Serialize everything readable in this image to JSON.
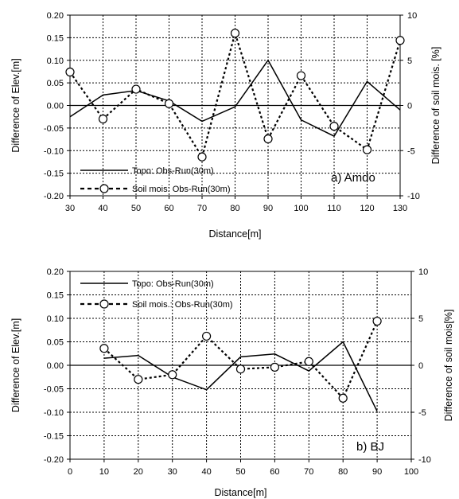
{
  "chart_data": [
    {
      "type": "line",
      "panel_label": "a) Amdo",
      "xlabel": "Distance[m]",
      "ylabel": "Difference of Elev.[m]",
      "y2label": "Difference of soil mois. [%]",
      "xlim": [
        30,
        130
      ],
      "ylim": [
        -0.2,
        0.2
      ],
      "y2lim": [
        -10,
        10
      ],
      "x_ticks": [
        "30",
        "40",
        "50",
        "60",
        "70",
        "80",
        "90",
        "100",
        "110",
        "120",
        "130"
      ],
      "y_ticks": [
        "0.20",
        "0.15",
        "0.10",
        "0.05",
        "0.00",
        "-0.05",
        "-0.10",
        "-0.15",
        "-0.20"
      ],
      "y2_ticks": [
        "10",
        "5",
        "0",
        "-5",
        "-10"
      ],
      "grid": true,
      "legend_position": "bottom-left",
      "series": [
        {
          "name": "Topo: Obs-Run(30m)",
          "axis": "left",
          "style": "solid",
          "x": [
            30,
            40,
            50,
            60,
            70,
            80,
            90,
            100,
            110,
            120,
            130
          ],
          "y": [
            -0.025,
            0.023,
            0.033,
            0.01,
            -0.035,
            -0.003,
            0.1,
            -0.032,
            -0.068,
            0.053,
            -0.01
          ]
        },
        {
          "name": "Soil mois: Obs-Run(30m)",
          "axis": "right",
          "style": "dotted-circle",
          "x": [
            30,
            40,
            50,
            60,
            70,
            80,
            90,
            100,
            110,
            120,
            130
          ],
          "y": [
            3.7,
            -1.5,
            1.8,
            0.2,
            -5.7,
            8.0,
            -3.7,
            3.3,
            -2.3,
            -4.9,
            7.2
          ]
        }
      ]
    },
    {
      "type": "line",
      "panel_label": "b) BJ",
      "xlabel": "Distance[m]",
      "ylabel": "Difference of Elev.[m]",
      "y2label": "Difference of soil mois[%]",
      "xlim": [
        0,
        100
      ],
      "ylim": [
        -0.2,
        0.2
      ],
      "y2lim": [
        -10,
        10
      ],
      "x_ticks": [
        "0",
        "10",
        "20",
        "30",
        "40",
        "50",
        "60",
        "70",
        "80",
        "90",
        "100"
      ],
      "y_ticks": [
        "0.20",
        "0.15",
        "0.10",
        "0.05",
        "0.00",
        "-0.05",
        "-0.10",
        "-0.15",
        "-0.20"
      ],
      "y2_ticks": [
        "10",
        "5",
        "0",
        "-5",
        "-10"
      ],
      "grid": true,
      "legend_position": "top-left",
      "series": [
        {
          "name": "Topo: Obs-Run(30m)",
          "axis": "left",
          "style": "solid",
          "x": [
            10,
            20,
            30,
            40,
            50,
            60,
            70,
            80,
            90
          ],
          "y": [
            0.015,
            0.021,
            -0.025,
            -0.052,
            0.018,
            0.024,
            -0.012,
            0.05,
            -0.098
          ]
        },
        {
          "name": "Soil mois.: Obs-Run(30m)",
          "axis": "right",
          "style": "dotted-circle",
          "x": [
            10,
            20,
            30,
            40,
            50,
            60,
            70,
            80,
            90
          ],
          "y": [
            1.8,
            -1.5,
            -1.0,
            3.1,
            -0.4,
            -0.2,
            0.4,
            -3.5,
            4.7
          ]
        }
      ]
    }
  ]
}
